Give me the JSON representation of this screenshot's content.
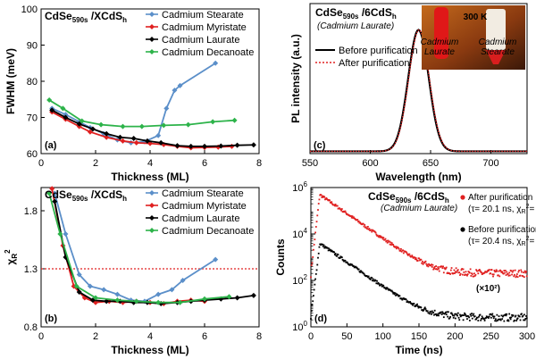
{
  "colors": {
    "stearate": "#5b8fc9",
    "myristate": "#e02020",
    "laurate": "#000000",
    "decanoate": "#2db34a",
    "threshold": "#e02020"
  },
  "chart_data": [
    {
      "id": "a",
      "type": "line",
      "panel_label": "(a)",
      "title": "CdSe590s /XCdSh",
      "xlabel": "Thickness (ML)",
      "ylabel": "FWHM (meV)",
      "xlim": [
        0,
        8
      ],
      "ylim": [
        60,
        100
      ],
      "xticks": [
        0,
        2,
        4,
        6,
        8
      ],
      "yticks": [
        60,
        70,
        80,
        90,
        100
      ],
      "legend": "top-right",
      "series": [
        {
          "name": "Cadmium Stearate",
          "color": "stearate",
          "marker": "diamond",
          "x": [
            0.4,
            0.9,
            1.4,
            1.8,
            2.3,
            2.8,
            3.3,
            3.8,
            4.3,
            4.6,
            4.9,
            5.1,
            6.4
          ],
          "y": [
            72.5,
            70.8,
            68.8,
            67.2,
            65.5,
            63.8,
            63.0,
            63.3,
            65.0,
            72.5,
            77.5,
            78.8,
            85.0
          ]
        },
        {
          "name": "Cadmium Myristate",
          "color": "myristate",
          "marker": "diamond",
          "x": [
            0.4,
            0.9,
            1.4,
            1.8,
            2.4,
            3.0,
            3.5,
            4.0,
            4.5,
            5.0,
            5.5,
            6.0,
            6.5,
            7.0
          ],
          "y": [
            71.5,
            69.5,
            67.5,
            66.0,
            64.5,
            63.5,
            63.0,
            62.8,
            62.5,
            62.0,
            61.6,
            61.7,
            61.8,
            62.0
          ]
        },
        {
          "name": "Cadmium Laurate",
          "color": "laurate",
          "marker": "diamond",
          "x": [
            0.4,
            0.9,
            1.4,
            1.9,
            2.4,
            2.9,
            3.4,
            3.9,
            4.4,
            5.0,
            5.5,
            6.0,
            6.6,
            7.2,
            7.8
          ],
          "y": [
            72.0,
            70.0,
            68.2,
            66.8,
            65.5,
            64.5,
            64.2,
            63.5,
            63.0,
            62.2,
            62.0,
            62.0,
            62.1,
            62.3,
            62.4
          ]
        },
        {
          "name": "Cadmium Decanoate",
          "color": "decanoate",
          "marker": "diamond",
          "x": [
            0.3,
            0.8,
            1.5,
            2.2,
            3.0,
            3.7,
            4.5,
            5.4,
            6.3,
            7.1
          ],
          "y": [
            74.8,
            72.5,
            69.0,
            68.0,
            67.5,
            67.5,
            67.8,
            68.0,
            68.8,
            69.2
          ]
        }
      ]
    },
    {
      "id": "b",
      "type": "line",
      "panel_label": "(b)",
      "title": "CdSe590s /XCdSh",
      "xlabel": "Thickness (ML)",
      "ylabel": "χR2",
      "xlim": [
        0,
        8
      ],
      "ylim": [
        0.8,
        2.0
      ],
      "xticks": [
        0,
        2,
        4,
        6,
        8
      ],
      "yticks": [
        0.8,
        1.3,
        1.8
      ],
      "threshold": 1.3,
      "legend": "top-right",
      "series": [
        {
          "name": "Cadmium Stearate",
          "color": "stearate",
          "marker": "diamond",
          "x": [
            0.5,
            0.9,
            1.4,
            1.8,
            2.3,
            2.8,
            3.3,
            3.8,
            4.3,
            4.8,
            5.2,
            6.4
          ],
          "y": [
            1.95,
            1.6,
            1.25,
            1.15,
            1.12,
            1.08,
            1.03,
            1.02,
            1.08,
            1.12,
            1.2,
            1.38
          ]
        },
        {
          "name": "Cadmium Myristate",
          "color": "myristate",
          "marker": "diamond",
          "x": [
            0.4,
            0.8,
            1.2,
            1.6,
            2.0,
            2.5,
            3.0,
            3.5,
            4.0,
            4.5,
            5.0,
            5.5,
            6.0
          ],
          "y": [
            1.99,
            1.5,
            1.15,
            1.05,
            1.01,
            1.02,
            1.01,
            1.02,
            1.01,
            1.0,
            1.02,
            1.03,
            1.02
          ]
        },
        {
          "name": "Cadmium Laurate",
          "color": "laurate",
          "marker": "diamond",
          "x": [
            0.5,
            0.9,
            1.4,
            1.9,
            2.4,
            2.9,
            3.4,
            3.9,
            4.4,
            5.0,
            5.5,
            6.0,
            6.6,
            7.2,
            7.8
          ],
          "y": [
            1.88,
            1.4,
            1.1,
            1.03,
            1.02,
            1.02,
            1.01,
            1.01,
            1.0,
            1.01,
            1.02,
            1.03,
            1.04,
            1.05,
            1.07
          ]
        },
        {
          "name": "Cadmium Decanoate",
          "color": "decanoate",
          "marker": "diamond",
          "x": [
            0.3,
            0.7,
            1.3,
            2.0,
            2.8,
            3.5,
            4.3,
            5.1,
            6.0,
            6.9
          ],
          "y": [
            1.95,
            1.6,
            1.15,
            1.05,
            1.03,
            1.02,
            1.01,
            1.01,
            1.04,
            1.06
          ]
        }
      ]
    },
    {
      "id": "c",
      "type": "line",
      "panel_label": "(c)",
      "title": "CdSe590s /6CdSh",
      "subtitle": "(Cadmium Laurate)",
      "xlabel": "Wavelength (nm)",
      "ylabel": "PL intensity (a.u.)",
      "xlim": [
        550,
        730
      ],
      "xticks": [
        550,
        600,
        650,
        700
      ],
      "legend": "left",
      "peak_nm": 640,
      "fwhm_nm": 20,
      "series": [
        {
          "name": "Before purification",
          "color": "laurate",
          "style": "solid"
        },
        {
          "name": "After purification",
          "color": "myristate",
          "style": "dotted"
        }
      ],
      "inset": {
        "temperature": "300 K",
        "labels": [
          "Cadmium Laurate",
          "Cadmium Stearate"
        ]
      }
    },
    {
      "id": "d",
      "type": "scatter",
      "panel_label": "(d)",
      "title": "CdSe590s /6CdSh",
      "subtitle": "(Cadmium Laurate)",
      "xlabel": "Time (ns)",
      "ylabel": "Counts",
      "xlim": [
        0,
        300
      ],
      "xticks": [
        0,
        50,
        100,
        150,
        200,
        250,
        300
      ],
      "ylog": true,
      "ylim_exp": [
        0,
        6
      ],
      "yticks_exp": [
        0,
        2,
        4,
        6
      ],
      "scale_note": "(×10²)",
      "series": [
        {
          "name": "After purification",
          "label1": "After purification",
          "label2": "(τ= 20.1 ns, χR2= 1.079)",
          "color": "myristate",
          "tau_ns": 20.1,
          "peak_exp": 5.7,
          "floor_exp": 2.3,
          "t0_ns": 12
        },
        {
          "name": "Before purification",
          "label1": "Before purification",
          "label2": "(τ= 20.4 ns, χR2= 1.045)",
          "color": "laurate",
          "tau_ns": 20.4,
          "peak_exp": 3.6,
          "floor_exp": 0.4,
          "t0_ns": 12
        }
      ]
    }
  ]
}
